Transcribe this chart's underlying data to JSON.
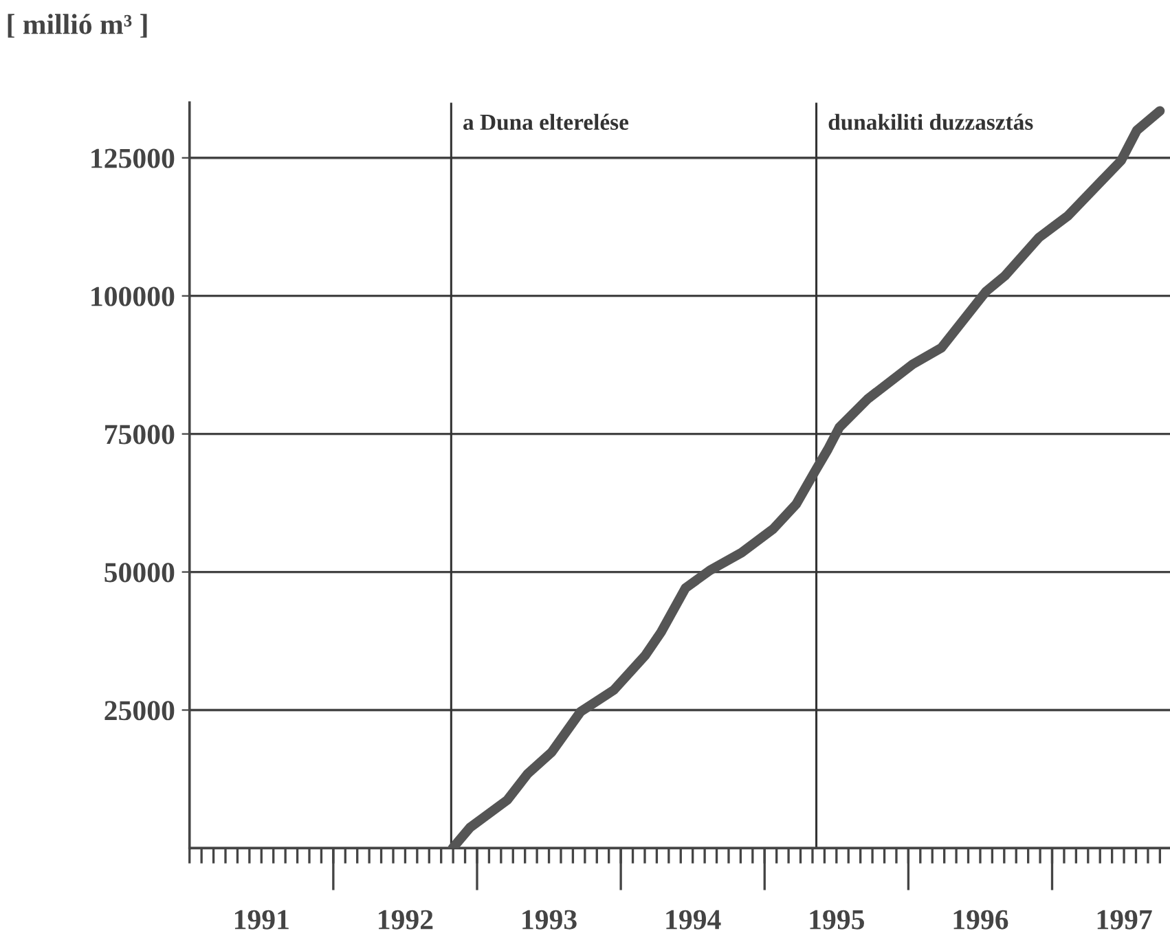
{
  "chart_data": {
    "type": "line",
    "ylabel": "[ millió m³ ]",
    "series": [
      {
        "color": "#555555",
        "x": [
          1992.83,
          1992.95,
          1993.21,
          1993.35,
          1993.52,
          1993.72,
          1993.95,
          1994.17,
          1994.28,
          1994.45,
          1994.62,
          1994.84,
          1995.06,
          1995.22,
          1995.35,
          1995.44,
          1995.52,
          1995.72,
          1996.03,
          1996.23,
          1996.54,
          1996.67,
          1996.91,
          1997.11,
          1997.35,
          1997.48,
          1997.59,
          1997.75
        ],
        "values": [
          0,
          3700,
          8700,
          13400,
          17400,
          24700,
          28600,
          34900,
          39100,
          47100,
          50300,
          53500,
          57800,
          62300,
          68200,
          72200,
          76200,
          81400,
          87600,
          90600,
          100800,
          103600,
          110600,
          114500,
          121000,
          124500,
          130000,
          133500
        ]
      }
    ],
    "xlim": [
      1991,
      1997.82
    ],
    "xticks": [
      {
        "value": 1991.5,
        "label": "1991"
      },
      {
        "value": 1992,
        "label": null
      },
      {
        "value": 1992.5,
        "label": "1992"
      },
      {
        "value": 1993,
        "label": null
      },
      {
        "value": 1993.5,
        "label": "1993"
      },
      {
        "value": 1994,
        "label": null
      },
      {
        "value": 1994.5,
        "label": "1994"
      },
      {
        "value": 1995,
        "label": null
      },
      {
        "value": 1995.5,
        "label": "1995"
      },
      {
        "value": 1996,
        "label": null
      },
      {
        "value": 1996.5,
        "label": "1996"
      },
      {
        "value": 1997,
        "label": null
      },
      {
        "value": 1997.5,
        "label": "1997"
      }
    ],
    "ylim": [
      0,
      135000
    ],
    "yticks": [
      25000,
      50000,
      75000,
      100000,
      125000
    ],
    "grid": "y",
    "line_style": "solid",
    "marker": "none",
    "ref_lines": [
      {
        "axis": "x",
        "value": 1992.82,
        "label": "a Duna elterelése",
        "color": "#333333"
      },
      {
        "axis": "x",
        "value": 1995.36,
        "label": "dunakiliti duzzasztás",
        "color": "#333333"
      }
    ]
  }
}
